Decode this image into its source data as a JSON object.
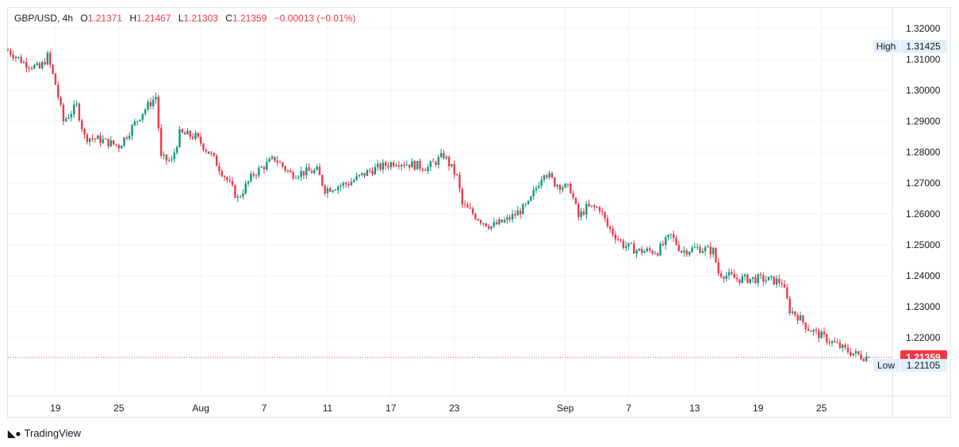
{
  "legend": {
    "symbol": "GBP/USD, 4h",
    "open_label": "O",
    "open": "1.21371",
    "high_label": "H",
    "high": "1.21467",
    "low_label": "L",
    "low": "1.21303",
    "close_label": "C",
    "close": "1.21359",
    "change": "−0.00013 (−0.01%)"
  },
  "brand": "TradingView",
  "colors": {
    "up": "#089981",
    "down": "#f23645",
    "grid": "#f0f3fa"
  },
  "chart_data": {
    "type": "candlestick",
    "title": "GBP/USD, 4h",
    "ylim": [
      1.2055,
      1.3267
    ],
    "y_ticks": [
      "1.32000",
      "1.31000",
      "1.30000",
      "1.29000",
      "1.28000",
      "1.27000",
      "1.26000",
      "1.25000",
      "1.24000",
      "1.23000",
      "1.22000"
    ],
    "y_tick_values": [
      1.32,
      1.31,
      1.3,
      1.29,
      1.28,
      1.27,
      1.26,
      1.25,
      1.24,
      1.23,
      1.22
    ],
    "x_ticks": [
      {
        "label": "19",
        "bar": 18
      },
      {
        "label": "25",
        "bar": 42
      },
      {
        "label": "Aug",
        "bar": 73
      },
      {
        "label": "7",
        "bar": 97
      },
      {
        "label": "11",
        "bar": 121
      },
      {
        "label": "17",
        "bar": 145
      },
      {
        "label": "23",
        "bar": 169
      },
      {
        "label": "Sep",
        "bar": 211
      },
      {
        "label": "7",
        "bar": 235
      },
      {
        "label": "13",
        "bar": 260
      },
      {
        "label": "19",
        "bar": 284
      },
      {
        "label": "25",
        "bar": 308
      }
    ],
    "bar_count": 327,
    "close_path": [
      [
        0,
        1.313
      ],
      [
        6,
        1.309
      ],
      [
        12,
        1.307
      ],
      [
        15,
        1.311
      ],
      [
        18,
        1.302
      ],
      [
        21,
        1.29
      ],
      [
        26,
        1.295
      ],
      [
        29,
        1.285
      ],
      [
        35,
        1.284
      ],
      [
        42,
        1.282
      ],
      [
        47,
        1.288
      ],
      [
        51,
        1.293
      ],
      [
        56,
        1.298
      ],
      [
        58,
        1.278
      ],
      [
        62,
        1.277
      ],
      [
        65,
        1.286
      ],
      [
        71,
        1.285
      ],
      [
        77,
        1.279
      ],
      [
        83,
        1.271
      ],
      [
        87,
        1.265
      ],
      [
        93,
        1.273
      ],
      [
        101,
        1.278
      ],
      [
        107,
        1.273
      ],
      [
        117,
        1.274
      ],
      [
        120,
        1.268
      ],
      [
        129,
        1.27
      ],
      [
        137,
        1.274
      ],
      [
        147,
        1.277
      ],
      [
        159,
        1.275
      ],
      [
        165,
        1.279
      ],
      [
        170,
        1.272
      ],
      [
        172,
        1.263
      ],
      [
        179,
        1.258
      ],
      [
        183,
        1.256
      ],
      [
        189,
        1.258
      ],
      [
        197,
        1.263
      ],
      [
        203,
        1.274
      ],
      [
        207,
        1.27
      ],
      [
        213,
        1.268
      ],
      [
        216,
        1.259
      ],
      [
        219,
        1.262
      ],
      [
        224,
        1.262
      ],
      [
        227,
        1.256
      ],
      [
        233,
        1.25
      ],
      [
        239,
        1.248
      ],
      [
        246,
        1.248
      ],
      [
        251,
        1.253
      ],
      [
        255,
        1.248
      ],
      [
        261,
        1.249
      ],
      [
        267,
        1.248
      ],
      [
        269,
        1.241
      ],
      [
        276,
        1.239
      ],
      [
        285,
        1.239
      ],
      [
        293,
        1.238
      ],
      [
        296,
        1.229
      ],
      [
        299,
        1.227
      ],
      [
        303,
        1.223
      ],
      [
        311,
        1.219
      ],
      [
        317,
        1.216
      ],
      [
        323,
        1.214
      ],
      [
        326,
        1.21359
      ]
    ],
    "high_marker": {
      "label": "High",
      "value": "1.31425"
    },
    "low_marker": {
      "label": "Low",
      "value": "1.21105"
    },
    "last_price": {
      "value": "1.21359"
    }
  }
}
